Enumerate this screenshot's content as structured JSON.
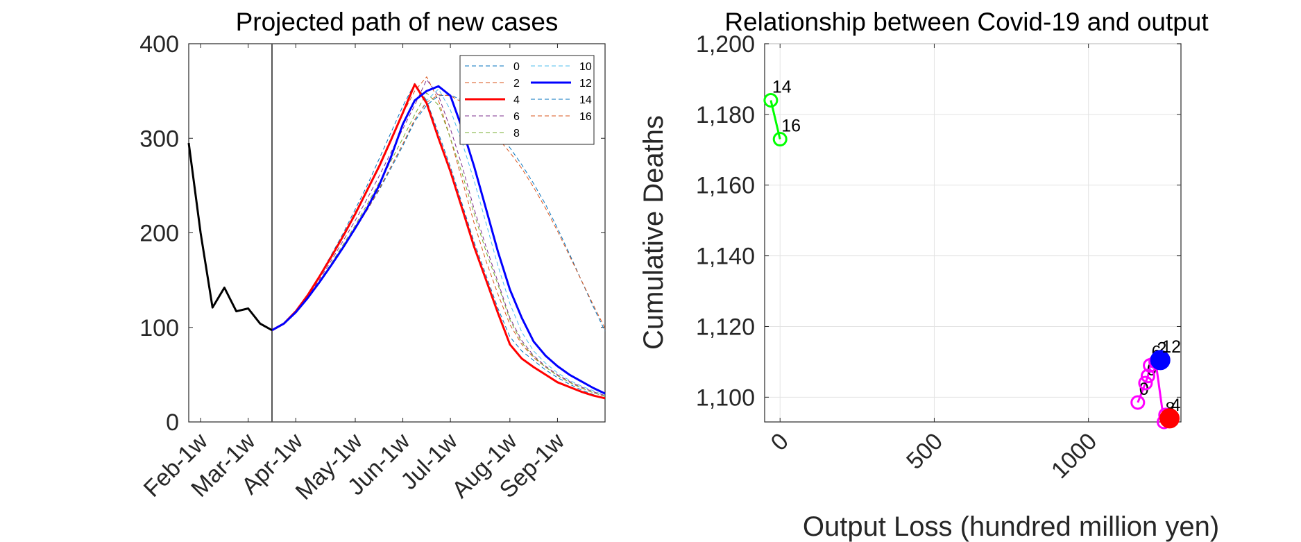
{
  "chart_data": [
    {
      "type": "line",
      "title": "Projected path of new cases",
      "xlabel": "",
      "ylabel": "",
      "ylim": [
        0,
        400
      ],
      "yticks": [
        0,
        100,
        200,
        300,
        400
      ],
      "xlim": [
        0,
        35
      ],
      "xticks": [
        {
          "x": 1,
          "label": "Feb-1w"
        },
        {
          "x": 5,
          "label": "Mar-1w"
        },
        {
          "x": 9,
          "label": "Apr-1w"
        },
        {
          "x": 14,
          "label": "May-1w"
        },
        {
          "x": 18,
          "label": "Jun-1w"
        },
        {
          "x": 22,
          "label": "Jul-1w"
        },
        {
          "x": 27,
          "label": "Aug-1w"
        },
        {
          "x": 31,
          "label": "Sep-1w"
        }
      ],
      "vline_x": 7,
      "history": {
        "color": "#000000",
        "x": [
          0,
          1,
          2,
          3,
          4,
          5,
          6,
          7
        ],
        "values": [
          295,
          200,
          121,
          142,
          117,
          120,
          104,
          97
        ]
      },
      "legend_position": "top-right",
      "legend_columns": 2,
      "series": [
        {
          "name": "0",
          "color": "#0072BD",
          "style": "dashed",
          "width": 1,
          "x": [
            7,
            8,
            9,
            10,
            11,
            12,
            13,
            14,
            15,
            16,
            17,
            18,
            19,
            20,
            21,
            22,
            23,
            24,
            25,
            26,
            27,
            28,
            29,
            30,
            31,
            32,
            33,
            34,
            35
          ],
          "values": [
            97,
            104,
            117,
            135,
            155,
            177,
            200,
            225,
            250,
            278,
            306,
            334,
            358,
            340,
            305,
            270,
            230,
            190,
            155,
            120,
            90,
            75,
            65,
            55,
            47,
            40,
            34,
            29,
            25
          ]
        },
        {
          "name": "2",
          "color": "#D95319",
          "style": "dashed",
          "width": 1,
          "x": [
            7,
            8,
            9,
            10,
            11,
            12,
            13,
            14,
            15,
            16,
            17,
            18,
            19,
            20,
            21,
            22,
            23,
            24,
            25,
            26,
            27,
            28,
            29,
            30,
            31,
            32,
            33,
            34,
            35
          ],
          "values": [
            97,
            104,
            117,
            135,
            155,
            176,
            198,
            222,
            246,
            272,
            300,
            326,
            350,
            365,
            340,
            300,
            255,
            210,
            170,
            135,
            103,
            82,
            68,
            58,
            49,
            42,
            36,
            31,
            27
          ]
        },
        {
          "name": "4",
          "color": "#FF0000",
          "style": "solid",
          "width": 3,
          "x": [
            7,
            8,
            9,
            10,
            11,
            12,
            13,
            14,
            15,
            16,
            17,
            18,
            19,
            20,
            21,
            22,
            23,
            24,
            25,
            26,
            27,
            28,
            29,
            30,
            31,
            32,
            33,
            34,
            35
          ],
          "values": [
            97,
            104,
            117,
            134,
            154,
            175,
            197,
            220,
            245,
            270,
            298,
            327,
            357,
            337,
            300,
            265,
            225,
            185,
            150,
            115,
            82,
            67,
            58,
            50,
            42,
            37,
            32,
            28,
            25
          ]
        },
        {
          "name": "6",
          "color": "#7E2F8E",
          "style": "dashed",
          "width": 1,
          "x": [
            7,
            8,
            9,
            10,
            11,
            12,
            13,
            14,
            15,
            16,
            17,
            18,
            19,
            20,
            21,
            22,
            23,
            24,
            25,
            26,
            27,
            28,
            29,
            30,
            31,
            32,
            33,
            34,
            35
          ],
          "values": [
            97,
            104,
            116,
            132,
            151,
            171,
            192,
            213,
            236,
            260,
            285,
            310,
            335,
            362,
            345,
            310,
            270,
            225,
            185,
            148,
            110,
            86,
            70,
            59,
            50,
            43,
            37,
            32,
            28
          ]
        },
        {
          "name": "8",
          "color": "#77AC30",
          "style": "dashed",
          "width": 1,
          "x": [
            7,
            8,
            9,
            10,
            11,
            12,
            13,
            14,
            15,
            16,
            17,
            18,
            19,
            20,
            21,
            22,
            23,
            24,
            25,
            26,
            27,
            28,
            29,
            30,
            31,
            32,
            33,
            34,
            35
          ],
          "values": [
            97,
            104,
            116,
            131,
            149,
            168,
            188,
            208,
            230,
            253,
            276,
            300,
            325,
            348,
            335,
            300,
            262,
            220,
            180,
            145,
            108,
            84,
            69,
            58,
            49,
            42,
            36,
            31,
            27
          ]
        },
        {
          "name": "10",
          "color": "#4DBEEE",
          "style": "dashed",
          "width": 1,
          "x": [
            7,
            8,
            9,
            10,
            11,
            12,
            13,
            14,
            15,
            16,
            17,
            18,
            19,
            20,
            21,
            22,
            23,
            24,
            25,
            26,
            27,
            28,
            29,
            30,
            31,
            32,
            33,
            34,
            35
          ],
          "values": [
            97,
            104,
            116,
            130,
            148,
            166,
            185,
            204,
            225,
            247,
            270,
            294,
            318,
            340,
            352,
            330,
            295,
            255,
            210,
            165,
            125,
            95,
            75,
            62,
            52,
            44,
            38,
            33,
            28
          ]
        },
        {
          "name": "12",
          "color": "#0000FF",
          "style": "solid",
          "width": 3,
          "x": [
            7,
            8,
            9,
            10,
            11,
            12,
            13,
            14,
            15,
            16,
            17,
            18,
            19,
            20,
            21,
            22,
            23,
            24,
            25,
            26,
            27,
            28,
            29,
            30,
            31,
            32,
            33,
            34,
            35
          ],
          "values": [
            97,
            104,
            116,
            131,
            148,
            166,
            185,
            205,
            226,
            250,
            280,
            315,
            340,
            350,
            355,
            345,
            310,
            270,
            225,
            180,
            140,
            110,
            85,
            70,
            59,
            50,
            43,
            36,
            30
          ]
        },
        {
          "name": "14",
          "color": "#0072BD",
          "style": "dashed",
          "width": 1,
          "x": [
            7,
            8,
            9,
            10,
            11,
            12,
            13,
            14,
            15,
            16,
            17,
            18,
            19,
            20,
            21,
            22,
            23,
            24,
            25,
            26,
            27,
            28,
            29,
            30,
            31,
            32,
            33,
            34,
            35
          ],
          "values": [
            97,
            104,
            116,
            131,
            148,
            166,
            185,
            204,
            224,
            245,
            268,
            292,
            318,
            335,
            345,
            346,
            340,
            330,
            318,
            305,
            290,
            272,
            252,
            230,
            205,
            178,
            150,
            122,
            96
          ]
        },
        {
          "name": "16",
          "color": "#D95319",
          "style": "dashed",
          "width": 1,
          "x": [
            7,
            8,
            9,
            10,
            11,
            12,
            13,
            14,
            15,
            16,
            17,
            18,
            19,
            20,
            21,
            22,
            23,
            24,
            25,
            26,
            27,
            28,
            29,
            30,
            31,
            32,
            33,
            34,
            35
          ],
          "values": [
            97,
            104,
            116,
            131,
            148,
            166,
            185,
            204,
            224,
            246,
            270,
            294,
            320,
            338,
            346,
            345,
            338,
            327,
            315,
            300,
            285,
            268,
            248,
            226,
            202,
            176,
            150,
            124,
            99
          ]
        }
      ]
    },
    {
      "type": "scatter",
      "title": "Relationship between Covid-19 and output",
      "xlabel": "Output Loss (hundred million yen)",
      "ylabel": "Cumulative Deaths",
      "xlim": [
        -50,
        1300
      ],
      "ylim": [
        1093,
        1200
      ],
      "xticks": [
        0,
        500,
        1000
      ],
      "yticks": [
        1100,
        1120,
        1140,
        1160,
        1180,
        1200
      ],
      "ytick_labels": [
        "1,100",
        "1,120",
        "1,140",
        "1,160",
        "1,180",
        "1,200"
      ],
      "grid": true,
      "groups": [
        {
          "color": "#00FF00",
          "marker": "open-circle",
          "points": [
            {
              "x": -30,
              "y": 1184,
              "label": "14"
            },
            {
              "x": 0,
              "y": 1173,
              "label": "16"
            }
          ]
        },
        {
          "color": "#FF00FF",
          "marker": "open-circle",
          "points": [
            {
              "x": 1160,
              "y": 1098.5,
              "label": "0"
            },
            {
              "x": 1185,
              "y": 1104,
              "label": "0"
            },
            {
              "x": 1193,
              "y": 1106,
              "label": ""
            },
            {
              "x": 1200,
              "y": 1109,
              "label": "6"
            },
            {
              "x": 1218,
              "y": 1110,
              "label": "2"
            },
            {
              "x": 1245,
              "y": 1093,
              "label": "8"
            },
            {
              "x": 1250,
              "y": 1095,
              "label": ""
            }
          ]
        },
        {
          "color": "#0000FF",
          "marker": "filled-circle",
          "points": [
            {
              "x": 1233,
              "y": 1110.5,
              "label": "12"
            }
          ]
        },
        {
          "color": "#FF0000",
          "marker": "filled-circle",
          "points": [
            {
              "x": 1263,
              "y": 1094,
              "label": "4"
            }
          ]
        }
      ]
    }
  ]
}
